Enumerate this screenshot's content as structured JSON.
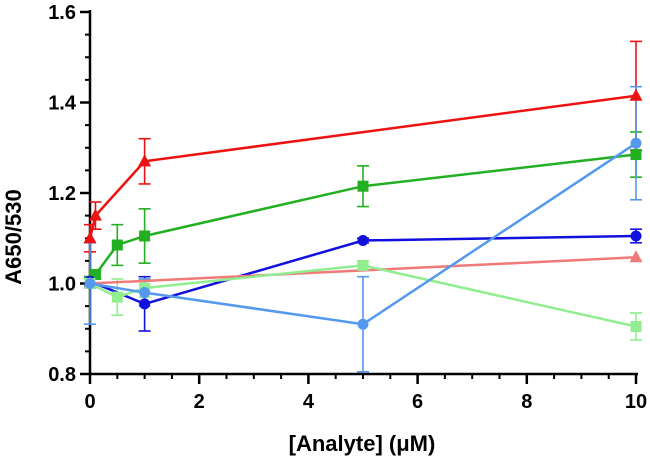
{
  "chart_data": {
    "type": "line",
    "title": "",
    "xlabel": "[Analyte] (μM)",
    "ylabel": "A650/530",
    "xlim": [
      0,
      10
    ],
    "ylim": [
      0.8,
      1.6
    ],
    "xticks": [
      0,
      2,
      4,
      6,
      8,
      10
    ],
    "yticks": [
      0.8,
      1.0,
      1.2,
      1.4,
      1.6
    ],
    "xtick_labels": [
      "0",
      "2",
      "4",
      "6",
      "8",
      "10"
    ],
    "ytick_labels": [
      "0.8",
      "1.0",
      "1.2",
      "1.4",
      "1.6"
    ],
    "y_minor_step": 0.05,
    "x_minor_step": 0.5,
    "grid": false,
    "legend": false,
    "series": [
      {
        "name": "red",
        "color": "#ee1111",
        "marker": "triangle",
        "x": [
          0,
          0.1,
          1,
          10
        ],
        "y": [
          1.1,
          1.15,
          1.27,
          1.415
        ],
        "err": [
          0.03,
          0.03,
          0.05,
          0.12
        ]
      },
      {
        "name": "green",
        "color": "#22b022",
        "marker": "square",
        "x": [
          0,
          0.1,
          0.5,
          1,
          5,
          10
        ],
        "y": [
          1.005,
          1.02,
          1.085,
          1.105,
          1.215,
          1.285
        ],
        "err": [
          0.01,
          0.01,
          0.045,
          0.06,
          0.045,
          0.05
        ]
      },
      {
        "name": "blue",
        "color": "#1111dd",
        "marker": "circle",
        "x": [
          0,
          1,
          5,
          10
        ],
        "y": [
          1.005,
          0.955,
          1.095,
          1.105
        ],
        "err": [
          0.01,
          0.06,
          0.005,
          0.015
        ]
      },
      {
        "name": "pink",
        "color": "#f07a7a",
        "marker": "triangle",
        "x": [
          0,
          10
        ],
        "y": [
          1.0,
          1.058
        ],
        "err": [
          0,
          0
        ]
      },
      {
        "name": "light-green",
        "color": "#90ee90",
        "marker": "square",
        "x": [
          0,
          0.5,
          1,
          5,
          10
        ],
        "y": [
          1.0,
          0.97,
          0.99,
          1.04,
          0.905
        ],
        "err": [
          0.01,
          0.04,
          0.02,
          0.01,
          0.03
        ]
      },
      {
        "name": "light-blue",
        "color": "#5599ee",
        "marker": "circle",
        "x": [
          0,
          1,
          5,
          10
        ],
        "y": [
          1.0,
          0.98,
          0.91,
          1.31
        ],
        "err": [
          0.09,
          0.03,
          0.105,
          0.125
        ]
      }
    ]
  }
}
